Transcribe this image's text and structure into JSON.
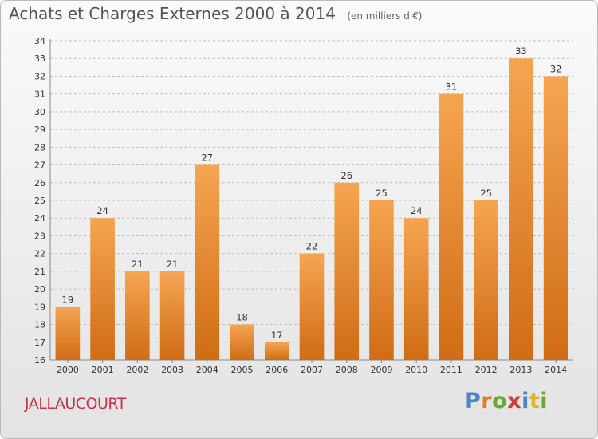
{
  "header": {
    "title": "Achats et Charges Externes 2000 à 2014",
    "unit": "(en milliers d'€)"
  },
  "commune": "JALLAUCOURT",
  "logo": {
    "text": "Proxiti",
    "letter_colors": [
      "#4a86c8",
      "#e07b2a",
      "#6aa935",
      "#d13b3b",
      "#4a86c8",
      "#e0b52a",
      "#6aa935"
    ]
  },
  "colors": {
    "bar_top": "#f5a552",
    "bar_bottom": "#d06c15",
    "grid": "#bfbfbf"
  },
  "chart_data": {
    "type": "bar",
    "title": "Achats et Charges Externes 2000 à 2014",
    "subtitle": "(en milliers d'€)",
    "categories": [
      "2000",
      "2001",
      "2002",
      "2003",
      "2004",
      "2005",
      "2006",
      "2007",
      "2008",
      "2009",
      "2010",
      "2011",
      "2012",
      "2013",
      "2014"
    ],
    "values": [
      19,
      24,
      21,
      21,
      27,
      18,
      17,
      22,
      26,
      25,
      24,
      31,
      25,
      33,
      32
    ],
    "ylim": [
      16,
      34
    ],
    "yticks": [
      16,
      17,
      18,
      19,
      20,
      21,
      22,
      23,
      24,
      25,
      26,
      27,
      28,
      29,
      30,
      31,
      32,
      33,
      34
    ],
    "grid": true,
    "xlabel": "",
    "ylabel": ""
  }
}
